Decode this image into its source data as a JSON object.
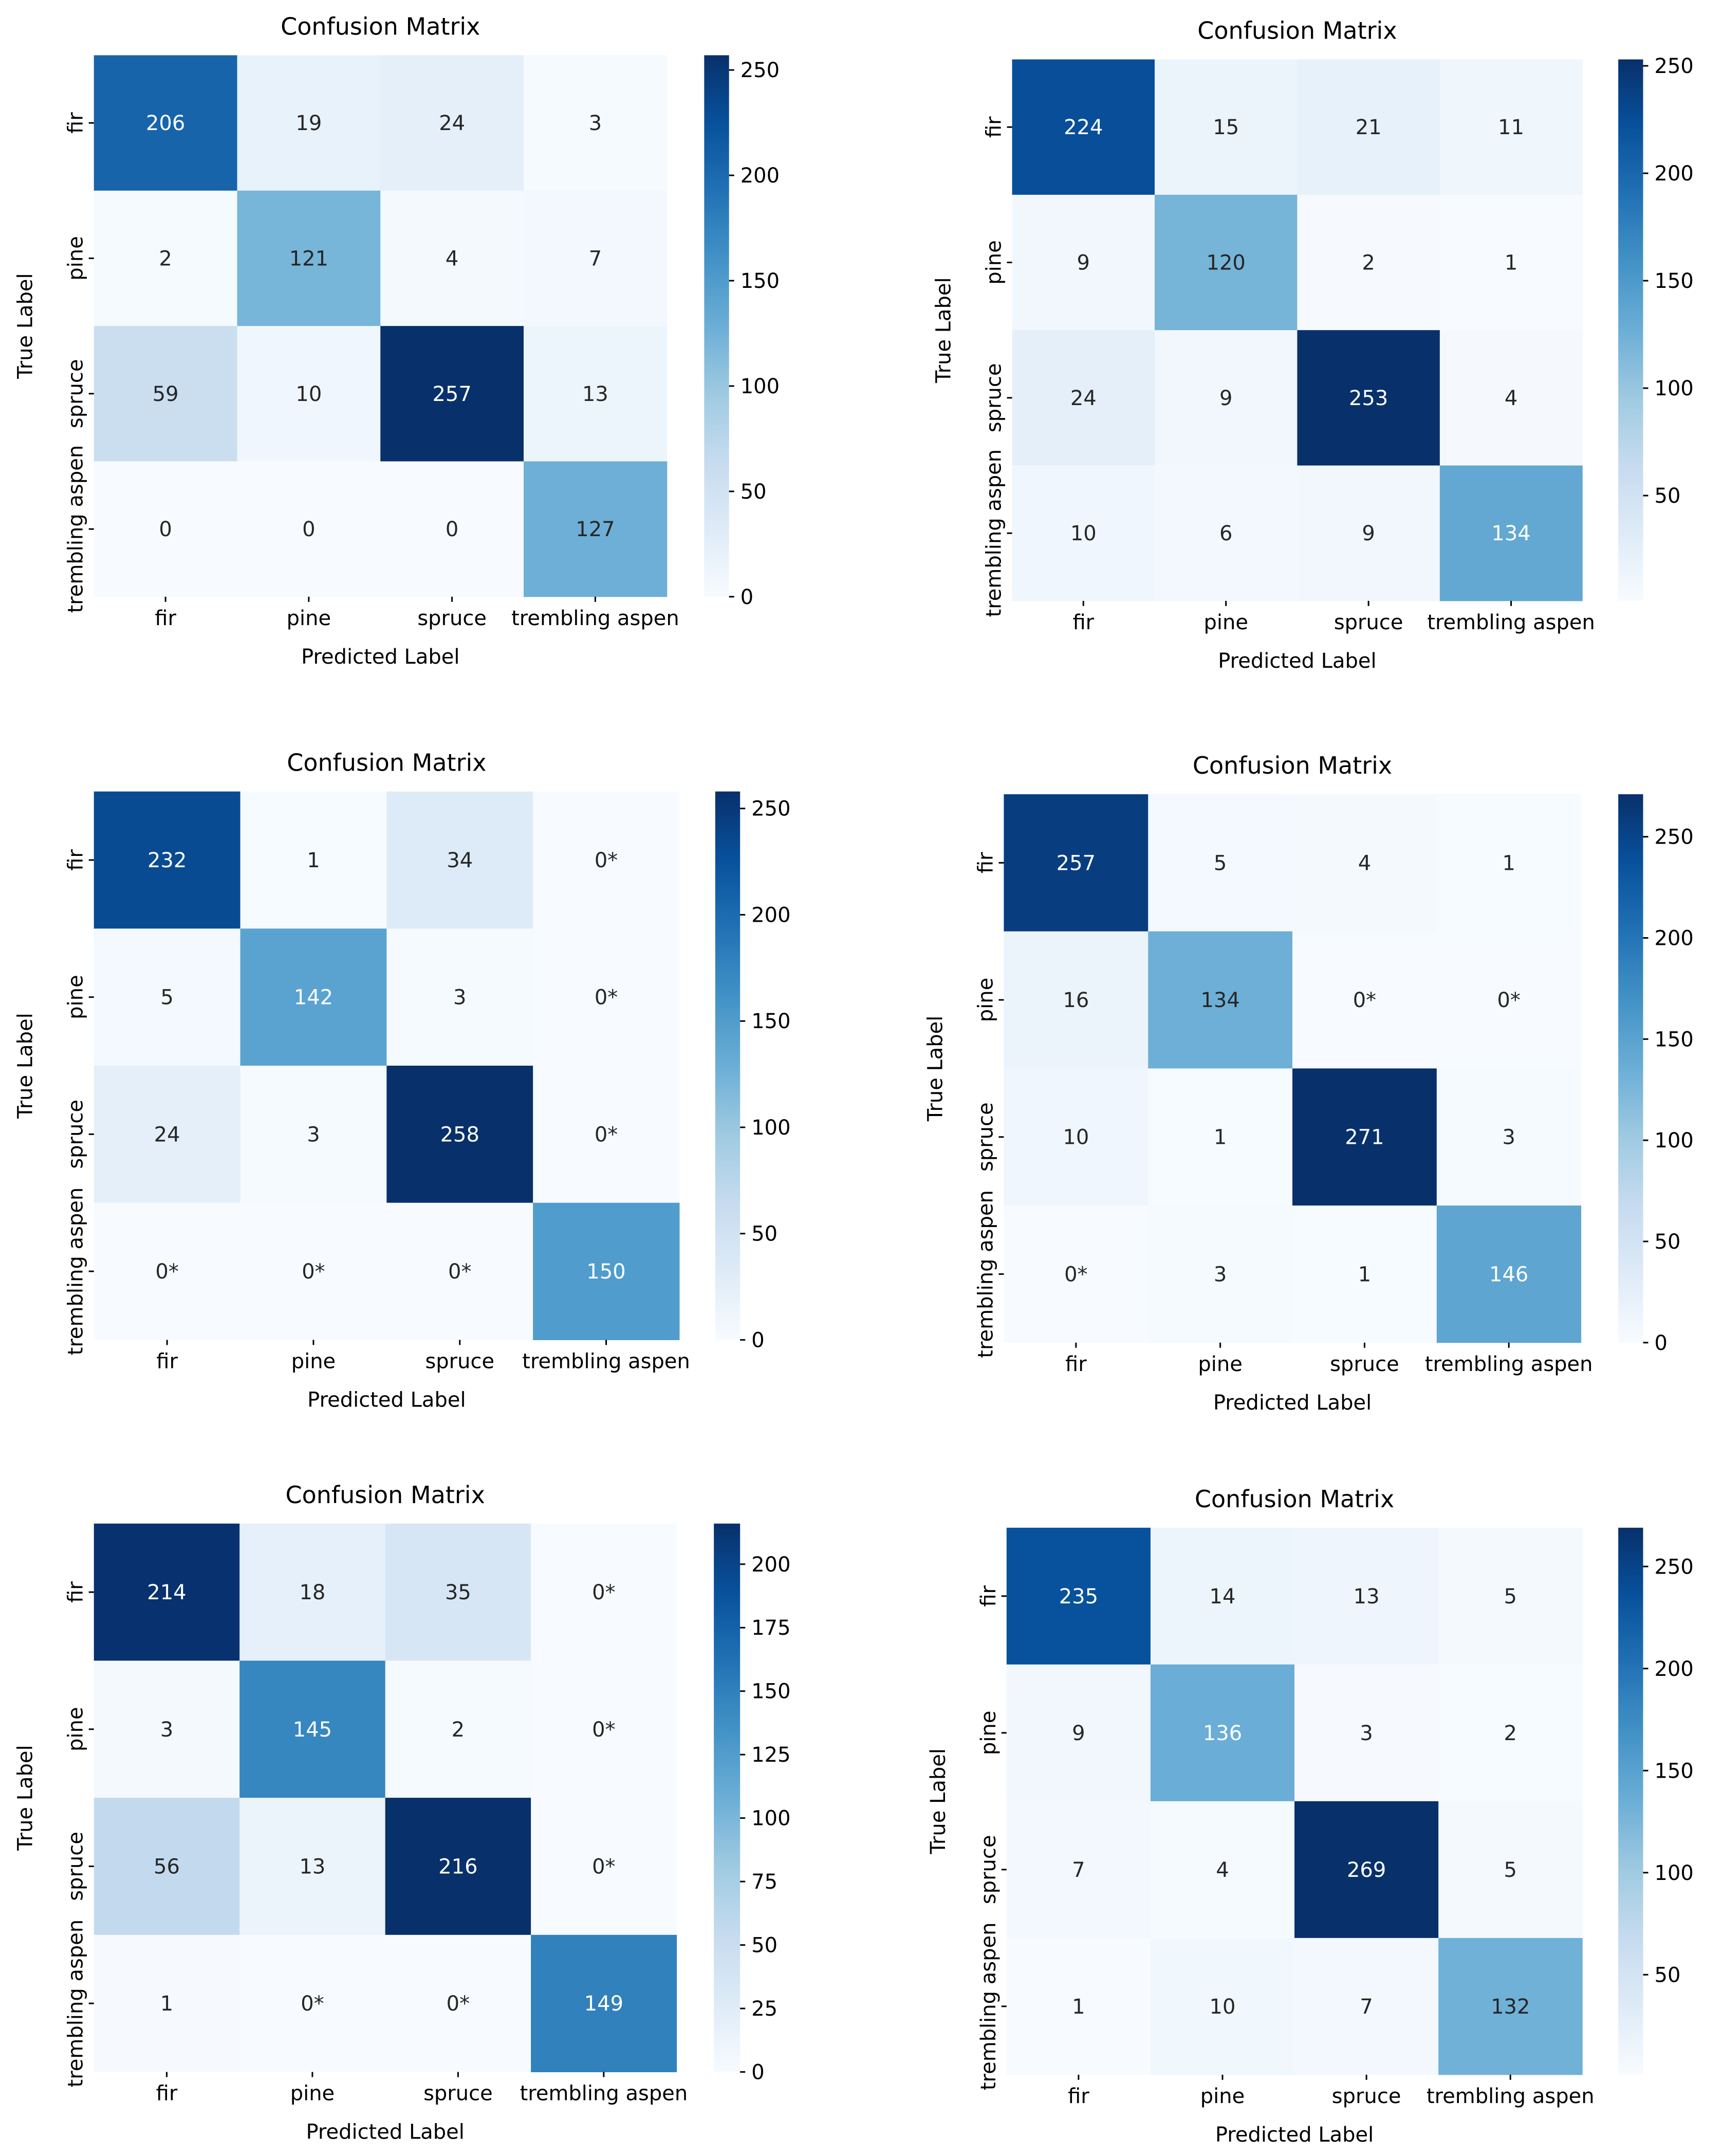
{
  "chart_data": [
    {
      "type": "heatmap",
      "title": "Confusion Matrix",
      "xlabel": "Predicted Label",
      "ylabel": "True Label",
      "x_categories": [
        "fir",
        "pine",
        "spruce",
        "trembling aspen"
      ],
      "y_categories": [
        "fir",
        "pine",
        "spruce",
        "trembling aspen"
      ],
      "values": [
        [
          206,
          19,
          24,
          3
        ],
        [
          2,
          121,
          4,
          7
        ],
        [
          59,
          10,
          257,
          13
        ],
        [
          0,
          0,
          0,
          127
        ]
      ],
      "labels": [
        [
          "206",
          "19",
          "24",
          "3"
        ],
        [
          "2",
          "121",
          "4",
          "7"
        ],
        [
          "59",
          "10",
          "257",
          "13"
        ],
        [
          "0",
          "0",
          "0",
          "127"
        ]
      ],
      "colorbar": {
        "range": [
          0,
          257
        ],
        "ticks": [
          0,
          50,
          100,
          150,
          200,
          250
        ]
      }
    },
    {
      "type": "heatmap",
      "title": "Confusion Matrix",
      "xlabel": "Predicted Label",
      "ylabel": "True Label",
      "x_categories": [
        "fir",
        "pine",
        "spruce",
        "trembling aspen"
      ],
      "y_categories": [
        "fir",
        "pine",
        "spruce",
        "trembling aspen"
      ],
      "values": [
        [
          224,
          15,
          21,
          11
        ],
        [
          9,
          120,
          2,
          1
        ],
        [
          24,
          9,
          253,
          4
        ],
        [
          10,
          6,
          9,
          134
        ]
      ],
      "labels": [
        [
          "224",
          "15",
          "21",
          "11"
        ],
        [
          "9",
          "120",
          "2",
          "1"
        ],
        [
          "24",
          "9",
          "253",
          "4"
        ],
        [
          "10",
          "6",
          "9",
          "134"
        ]
      ],
      "colorbar": {
        "range": [
          1,
          253
        ],
        "ticks": [
          50,
          100,
          150,
          200,
          250
        ]
      }
    },
    {
      "type": "heatmap",
      "title": "Confusion Matrix",
      "xlabel": "Predicted Label",
      "ylabel": "True Label",
      "x_categories": [
        "fir",
        "pine",
        "spruce",
        "trembling aspen"
      ],
      "y_categories": [
        "fir",
        "pine",
        "spruce",
        "trembling aspen"
      ],
      "values": [
        [
          232,
          1,
          34,
          0
        ],
        [
          5,
          142,
          3,
          0
        ],
        [
          24,
          3,
          258,
          0
        ],
        [
          0,
          0,
          0,
          150
        ]
      ],
      "labels": [
        [
          "232",
          "1",
          "34",
          "0*"
        ],
        [
          "5",
          "142",
          "3",
          "0*"
        ],
        [
          "24",
          "3",
          "258",
          "0*"
        ],
        [
          "0*",
          "0*",
          "0*",
          "150"
        ]
      ],
      "colorbar": {
        "range": [
          0,
          258
        ],
        "ticks": [
          0,
          50,
          100,
          150,
          200,
          250
        ]
      }
    },
    {
      "type": "heatmap",
      "title": "Confusion Matrix",
      "xlabel": "Predicted Label",
      "ylabel": "True Label",
      "x_categories": [
        "fir",
        "pine",
        "spruce",
        "trembling aspen"
      ],
      "y_categories": [
        "fir",
        "pine",
        "spruce",
        "trembling aspen"
      ],
      "values": [
        [
          257,
          5,
          4,
          1
        ],
        [
          16,
          134,
          0,
          0
        ],
        [
          10,
          1,
          271,
          3
        ],
        [
          0,
          3,
          1,
          146
        ]
      ],
      "labels": [
        [
          "257",
          "5",
          "4",
          "1"
        ],
        [
          "16",
          "134",
          "0*",
          "0*"
        ],
        [
          "10",
          "1",
          "271",
          "3"
        ],
        [
          "0*",
          "3",
          "1",
          "146"
        ]
      ],
      "colorbar": {
        "range": [
          0,
          271
        ],
        "ticks": [
          0,
          50,
          100,
          150,
          200,
          250
        ]
      }
    },
    {
      "type": "heatmap",
      "title": "Confusion Matrix",
      "xlabel": "Predicted Label",
      "ylabel": "True Label",
      "x_categories": [
        "fir",
        "pine",
        "spruce",
        "trembling aspen"
      ],
      "y_categories": [
        "fir",
        "pine",
        "spruce",
        "trembling aspen"
      ],
      "values": [
        [
          214,
          18,
          35,
          0
        ],
        [
          3,
          145,
          2,
          0
        ],
        [
          56,
          13,
          216,
          0
        ],
        [
          1,
          0,
          0,
          149
        ]
      ],
      "labels": [
        [
          "214",
          "18",
          "35",
          "0*"
        ],
        [
          "3",
          "145",
          "2",
          "0*"
        ],
        [
          "56",
          "13",
          "216",
          "0*"
        ],
        [
          "1",
          "0*",
          "0*",
          "149"
        ]
      ],
      "colorbar": {
        "range": [
          0,
          216
        ],
        "ticks": [
          0,
          25,
          50,
          75,
          100,
          125,
          150,
          175,
          200
        ]
      }
    },
    {
      "type": "heatmap",
      "title": "Confusion Matrix",
      "xlabel": "Predicted Label",
      "ylabel": "True Label",
      "x_categories": [
        "fir",
        "pine",
        "spruce",
        "trembling aspen"
      ],
      "y_categories": [
        "fir",
        "pine",
        "spruce",
        "trembling aspen"
      ],
      "values": [
        [
          235,
          14,
          13,
          5
        ],
        [
          9,
          136,
          3,
          2
        ],
        [
          7,
          4,
          269,
          5
        ],
        [
          1,
          10,
          7,
          132
        ]
      ],
      "labels": [
        [
          "235",
          "14",
          "13",
          "5"
        ],
        [
          "9",
          "136",
          "3",
          "2"
        ],
        [
          "7",
          "4",
          "269",
          "5"
        ],
        [
          "1",
          "10",
          "7",
          "132"
        ]
      ],
      "colorbar": {
        "range": [
          1,
          269
        ],
        "ticks": [
          50,
          100,
          150,
          200,
          250
        ]
      }
    }
  ]
}
